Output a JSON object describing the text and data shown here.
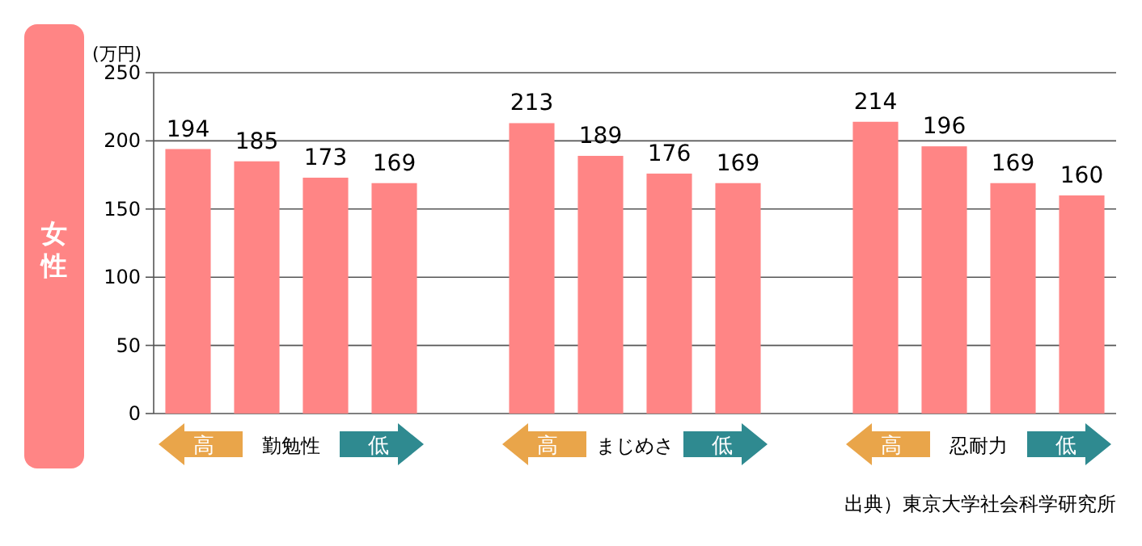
{
  "chart_data": {
    "type": "bar",
    "title": "女性",
    "ylabel": "(万円)",
    "categories": [
      null,
      null,
      null,
      null,
      null,
      null,
      null,
      null,
      null,
      null,
      null,
      null,
      null,
      null
    ],
    "values": [
      194,
      185,
      173,
      169,
      null,
      213,
      189,
      176,
      169,
      null,
      214,
      196,
      169,
      160
    ],
    "color": "#ff8585",
    "ylim": [
      0,
      250
    ],
    "yticks": [
      0,
      50,
      100,
      150,
      200,
      250
    ],
    "grid": "y",
    "data_labels": true,
    "annotations": [
      "高",
      "勤勉性",
      "低",
      "高",
      "まじめさ",
      "低",
      "高",
      "忍耐力",
      "低",
      "出典）東京大学社会科学研究所"
    ]
  }
}
